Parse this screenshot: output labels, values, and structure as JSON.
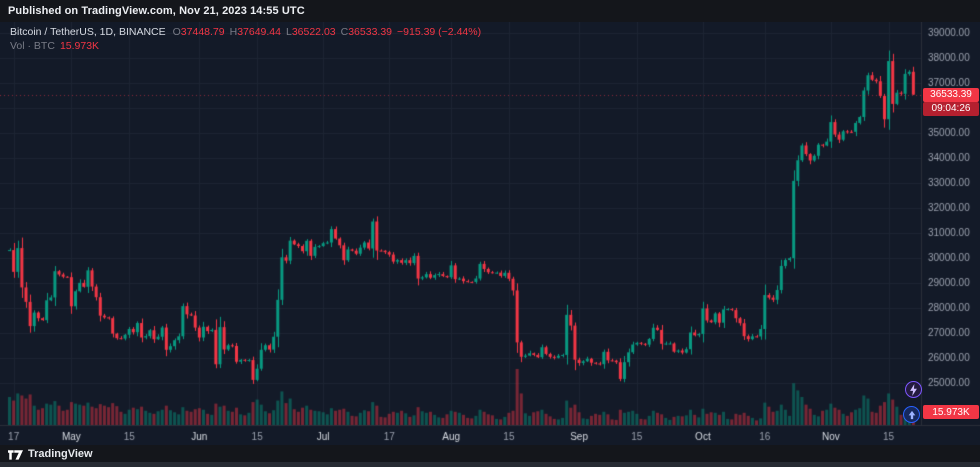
{
  "published_bar": {
    "text": "Published on TradingView.com, Nov 21, 2023 14:55 UTC"
  },
  "legend": {
    "symbol": "Bitcoin / TetherUS, 1D, BINANCE",
    "ohlc": {
      "o_label": "O",
      "o_value": "37448.79",
      "h_label": "H",
      "h_value": "37649.44",
      "l_label": "L",
      "l_value": "36522.03",
      "c_label": "C",
      "c_value": "36533.39"
    },
    "change": "−915.39 (−2.44%)",
    "volume_label": "Vol · BTC",
    "volume_value": "15.973K"
  },
  "price_axis": {
    "last_price": "36533.39",
    "countdown": "09:04:26",
    "volume_tag": "15.973K"
  },
  "footer": {
    "brand": "TradingView"
  },
  "icons": {
    "boost": "lightning-icon",
    "vote": "up-arrow-icon"
  },
  "colors": {
    "background": "#131a28",
    "grid": "#1d2433",
    "up": "#089981",
    "down": "#f23645",
    "axis_line": "#2a2e39",
    "axis_text": "#9aa0ad",
    "month_text": "#d5d9e0",
    "price_tag_bg": "#f23645",
    "countdown_bg": "#b4202f",
    "volume_tag_bg": "#f23645"
  },
  "chart_data": {
    "type": "candlestick",
    "symbol": "BTCUSDT",
    "interval": "1D",
    "exchange": "BINANCE",
    "title": "Bitcoin / TetherUS daily with volume, Apr 16 – Nov 21 2023",
    "y_axis": {
      "ticks": [
        39000,
        38000,
        37000,
        36000,
        35000,
        34000,
        33000,
        32000,
        31000,
        30000,
        29000,
        28000,
        27000,
        26000,
        25000
      ]
    },
    "x_ticks": [
      {
        "index": 1,
        "label": "17"
      },
      {
        "index": 15,
        "label": "May"
      },
      {
        "index": 29,
        "label": "15"
      },
      {
        "index": 46,
        "label": "Jun"
      },
      {
        "index": 60,
        "label": "15"
      },
      {
        "index": 76,
        "label": "Jul"
      },
      {
        "index": 92,
        "label": "17"
      },
      {
        "index": 107,
        "label": "Aug"
      },
      {
        "index": 121,
        "label": "15"
      },
      {
        "index": 138,
        "label": "Sep"
      },
      {
        "index": 152,
        "label": "15"
      },
      {
        "index": 168,
        "label": "Oct"
      },
      {
        "index": 183,
        "label": "16"
      },
      {
        "index": 199,
        "label": "Nov"
      },
      {
        "index": 213,
        "label": "15"
      }
    ],
    "first_open": 30300,
    "closes": [
      30317,
      29445,
      30397,
      28823,
      28245,
      27276,
      27817,
      27591,
      27514,
      28307,
      28422,
      29473,
      29340,
      29252,
      29233,
      28068,
      28670,
      29006,
      28847,
      29506,
      28857,
      28432,
      27694,
      27624,
      27593,
      26975,
      26793,
      26775,
      26930,
      27161,
      27030,
      27399,
      26819,
      26875,
      27110,
      26749,
      26851,
      27219,
      26328,
      26472,
      26712,
      26868,
      28075,
      27745,
      27700,
      27216,
      26819,
      27249,
      27075,
      27124,
      25749,
      27235,
      26341,
      26508,
      26481,
      25851,
      25928,
      25903,
      25918,
      25124,
      25572,
      26329,
      26510,
      26336,
      26851,
      28327,
      30027,
      29893,
      30695,
      30545,
      30480,
      30271,
      30688,
      30086,
      30445,
      30477,
      30590,
      30619,
      31156,
      30777,
      30508,
      29909,
      30342,
      30292,
      30171,
      30415,
      30620,
      30380,
      31460,
      30297,
      30292,
      30233,
      30137,
      29856,
      29915,
      29807,
      29913,
      29795,
      30085,
      29178,
      29227,
      29354,
      29212,
      29315,
      29356,
      29278,
      29230,
      29705,
      29153,
      29176,
      29074,
      29043,
      29041,
      29180,
      29765,
      29561,
      29429,
      29398,
      29415,
      29283,
      29408,
      29170,
      28701,
      26624,
      26049,
      26096,
      26189,
      26124,
      26031,
      26431,
      26163,
      26047,
      26009,
      26089,
      26122,
      27727,
      27297,
      25932,
      25800,
      25869,
      25969,
      25812,
      25780,
      25753,
      26248,
      25905,
      25895,
      25832,
      25162,
      25833,
      26228,
      26539,
      26608,
      26568,
      26534,
      26762,
      27211,
      27124,
      26567,
      26579,
      26580,
      26253,
      26298,
      26217,
      26352,
      27021,
      26908,
      26962,
      27983,
      27501,
      27429,
      27783,
      27412,
      27944,
      27957,
      27917,
      27590,
      27391,
      26873,
      26756,
      26866,
      26861,
      27159,
      28519,
      28415,
      28328,
      28719,
      29682,
      29918,
      29993,
      33086,
      33909,
      34502,
      34156,
      33901,
      34089,
      34533,
      34500,
      34656,
      35437,
      34938,
      34732,
      35065,
      35049,
      35046,
      35402,
      35640,
      36700,
      37311,
      37130,
      37070,
      36483,
      35549,
      37878,
      36163,
      36613,
      36568,
      37365,
      37448,
      36533.39
    ],
    "volumes": [
      55,
      48,
      62,
      58,
      52,
      60,
      38,
      30,
      33,
      42,
      40,
      47,
      38,
      28,
      30,
      45,
      42,
      40,
      38,
      44,
      36,
      33,
      41,
      38,
      35,
      43,
      37,
      26,
      22,
      30,
      34,
      31,
      36,
      28,
      24,
      22,
      27,
      30,
      38,
      29,
      25,
      21,
      35,
      28,
      26,
      31,
      33,
      30,
      22,
      20,
      42,
      36,
      38,
      28,
      26,
      34,
      21,
      19,
      24,
      45,
      50,
      40,
      27,
      23,
      29,
      48,
      66,
      43,
      52,
      31,
      26,
      34,
      38,
      30,
      28,
      27,
      25,
      21,
      33,
      28,
      30,
      32,
      26,
      18,
      17,
      24,
      29,
      27,
      45,
      38,
      16,
      15,
      22,
      26,
      24,
      28,
      23,
      16,
      19,
      35,
      27,
      24,
      26,
      20,
      15,
      14,
      21,
      28,
      26,
      24,
      20,
      14,
      13,
      18,
      30,
      26,
      21,
      19,
      12,
      11,
      16,
      24,
      28,
      110,
      62,
      23,
      18,
      25,
      27,
      30,
      22,
      17,
      12,
      11,
      14,
      48,
      34,
      40,
      25,
      13,
      12,
      18,
      22,
      20,
      26,
      21,
      11,
      10,
      30,
      24,
      26,
      28,
      22,
      12,
      11,
      18,
      28,
      24,
      21,
      14,
      10,
      16,
      18,
      17,
      19,
      30,
      20,
      15,
      32,
      22,
      25,
      24,
      20,
      26,
      12,
      11,
      22,
      20,
      24,
      18,
      14,
      9,
      13,
      44,
      36,
      26,
      28,
      40,
      30,
      18,
      82,
      68,
      55,
      40,
      32,
      20,
      17,
      28,
      30,
      42,
      34,
      30,
      22,
      18,
      25,
      30,
      33,
      58,
      52,
      26,
      24,
      38,
      45,
      62,
      50,
      36,
      20,
      22,
      33,
      15.973
    ],
    "volume_scale_max": 110,
    "last_candle": {
      "open": 37448.79,
      "high": 37649.44,
      "low": 36522.03,
      "close": 36533.39
    },
    "current_price": 36533.39,
    "current_volume": "15.973K"
  }
}
